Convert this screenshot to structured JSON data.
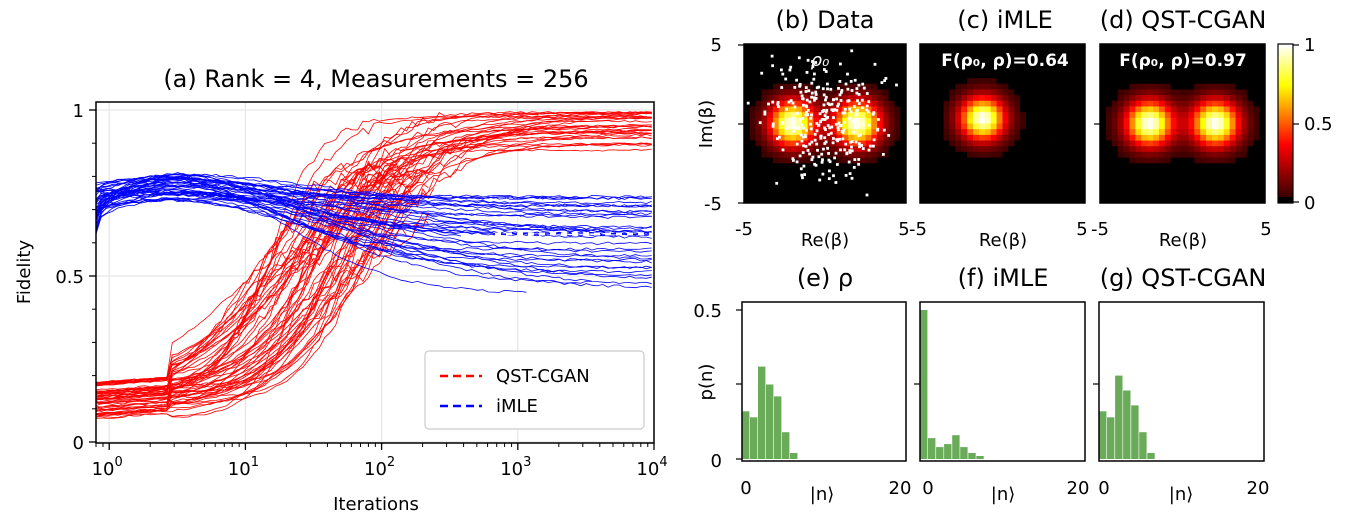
{
  "colors": {
    "qst": "#ff0000",
    "imle": "#0000ff",
    "hist": "#6aab5a",
    "legend_bg": "#ffffff"
  },
  "chart_data": [
    {
      "id": "a",
      "type": "line",
      "title": "(a) Rank = 4, Measurements = 256",
      "xlabel": "Iterations",
      "ylabel": "Fidelity",
      "xscale": "log",
      "xlim": [
        0.8,
        10000
      ],
      "ylim": [
        0,
        1
      ],
      "xticks": [
        {
          "v": 1,
          "base": "10",
          "exp": "0"
        },
        {
          "v": 10,
          "base": "10",
          "exp": "1"
        },
        {
          "v": 100,
          "base": "10",
          "exp": "2"
        },
        {
          "v": 1000,
          "base": "10",
          "exp": "3"
        },
        {
          "v": 10000,
          "base": "10",
          "exp": "4"
        }
      ],
      "yticks": [
        {
          "v": 0,
          "label": "0"
        },
        {
          "v": 0.5,
          "label": "0.5"
        },
        {
          "v": 1,
          "label": "1"
        }
      ],
      "grid": true,
      "legend": {
        "position": "lower-right",
        "entries": [
          {
            "name": "QST-CGAN",
            "color": "#ff0000"
          },
          {
            "name": "iMLE",
            "color": "#0000ff"
          }
        ]
      },
      "series": [
        {
          "name": "QST-CGAN",
          "color": "#ff0000",
          "runs": 60,
          "start_range": [
            0.07,
            0.18
          ],
          "final_range": [
            0.85,
            0.995
          ],
          "rise_iter": [
            12,
            120
          ]
        },
        {
          "name": "iMLE",
          "color": "#0000ff",
          "runs": 45,
          "start_range": [
            0.62,
            0.78
          ],
          "peak_iter": 2.7,
          "peak_range": [
            0.72,
            0.81
          ],
          "final_range": [
            0.44,
            0.74
          ],
          "mean_final": 0.63
        }
      ]
    },
    {
      "id": "b",
      "type": "heatmap",
      "title": "(b) Data",
      "xlabel": "Re(β)",
      "ylabel": "Im(β)",
      "xlim": [
        -5,
        5
      ],
      "ylim": [
        -5,
        5
      ],
      "xticks": [
        "-5",
        "5"
      ],
      "yticks": [
        "5",
        "0",
        "-5"
      ],
      "annotation": "ρ₀",
      "state": "two-component cat state",
      "peaks": [
        [
          -2,
          0
        ],
        [
          2,
          0
        ]
      ],
      "sigma": 1.0,
      "scatter_points": 300
    },
    {
      "id": "c",
      "type": "heatmap",
      "title": "(c) iMLE",
      "xlabel": "Re(β)",
      "xlim": [
        -5,
        5
      ],
      "ylim": [
        -5,
        5
      ],
      "xticks": [
        "-5",
        "5"
      ],
      "annotation": "F(ρ₀, ρ)=0.64",
      "peaks": [
        [
          -1.2,
          0.3
        ]
      ],
      "sigma": 0.95
    },
    {
      "id": "d",
      "type": "heatmap",
      "title": "(d) QST-CGAN",
      "xlabel": "Re(β)",
      "xlim": [
        -5,
        5
      ],
      "ylim": [
        -5,
        5
      ],
      "xticks": [
        "-5",
        "5"
      ],
      "annotation": "F(ρ₀, ρ)=0.97",
      "peaks": [
        [
          -2,
          0
        ],
        [
          2,
          0
        ]
      ],
      "sigma": 1.0,
      "colorbar": {
        "min": 0,
        "max": 1,
        "ticks": [
          "1",
          "0.5",
          "0"
        ]
      }
    },
    {
      "id": "e",
      "type": "bar",
      "title": "(e) ρ",
      "xlabel": "|n⟩",
      "ylabel": "p(n)",
      "xlim": [
        -0.5,
        20
      ],
      "ylim": [
        0,
        0.5
      ],
      "xticks": [
        "0",
        "20"
      ],
      "yticks": [
        "0.5",
        "0"
      ],
      "values": [
        0.16,
        0.14,
        0.31,
        0.25,
        0.21,
        0.09,
        0.02,
        0.0,
        0.0,
        0.0
      ]
    },
    {
      "id": "f",
      "type": "bar",
      "title": "(f) iMLE",
      "xlabel": "|n⟩",
      "xlim": [
        -0.5,
        20
      ],
      "ylim": [
        0,
        0.5
      ],
      "xticks": [
        "0",
        "20"
      ],
      "values": [
        0.5,
        0.07,
        0.04,
        0.05,
        0.08,
        0.04,
        0.02,
        0.01,
        0.0,
        0.0
      ]
    },
    {
      "id": "g",
      "type": "bar",
      "title": "(g) QST-CGAN",
      "xlabel": "|n⟩",
      "xlim": [
        -0.5,
        20
      ],
      "ylim": [
        0,
        0.5
      ],
      "xticks": [
        "0",
        "20"
      ],
      "values": [
        0.16,
        0.14,
        0.28,
        0.23,
        0.18,
        0.09,
        0.02,
        0.0,
        0.0,
        0.0
      ]
    }
  ]
}
